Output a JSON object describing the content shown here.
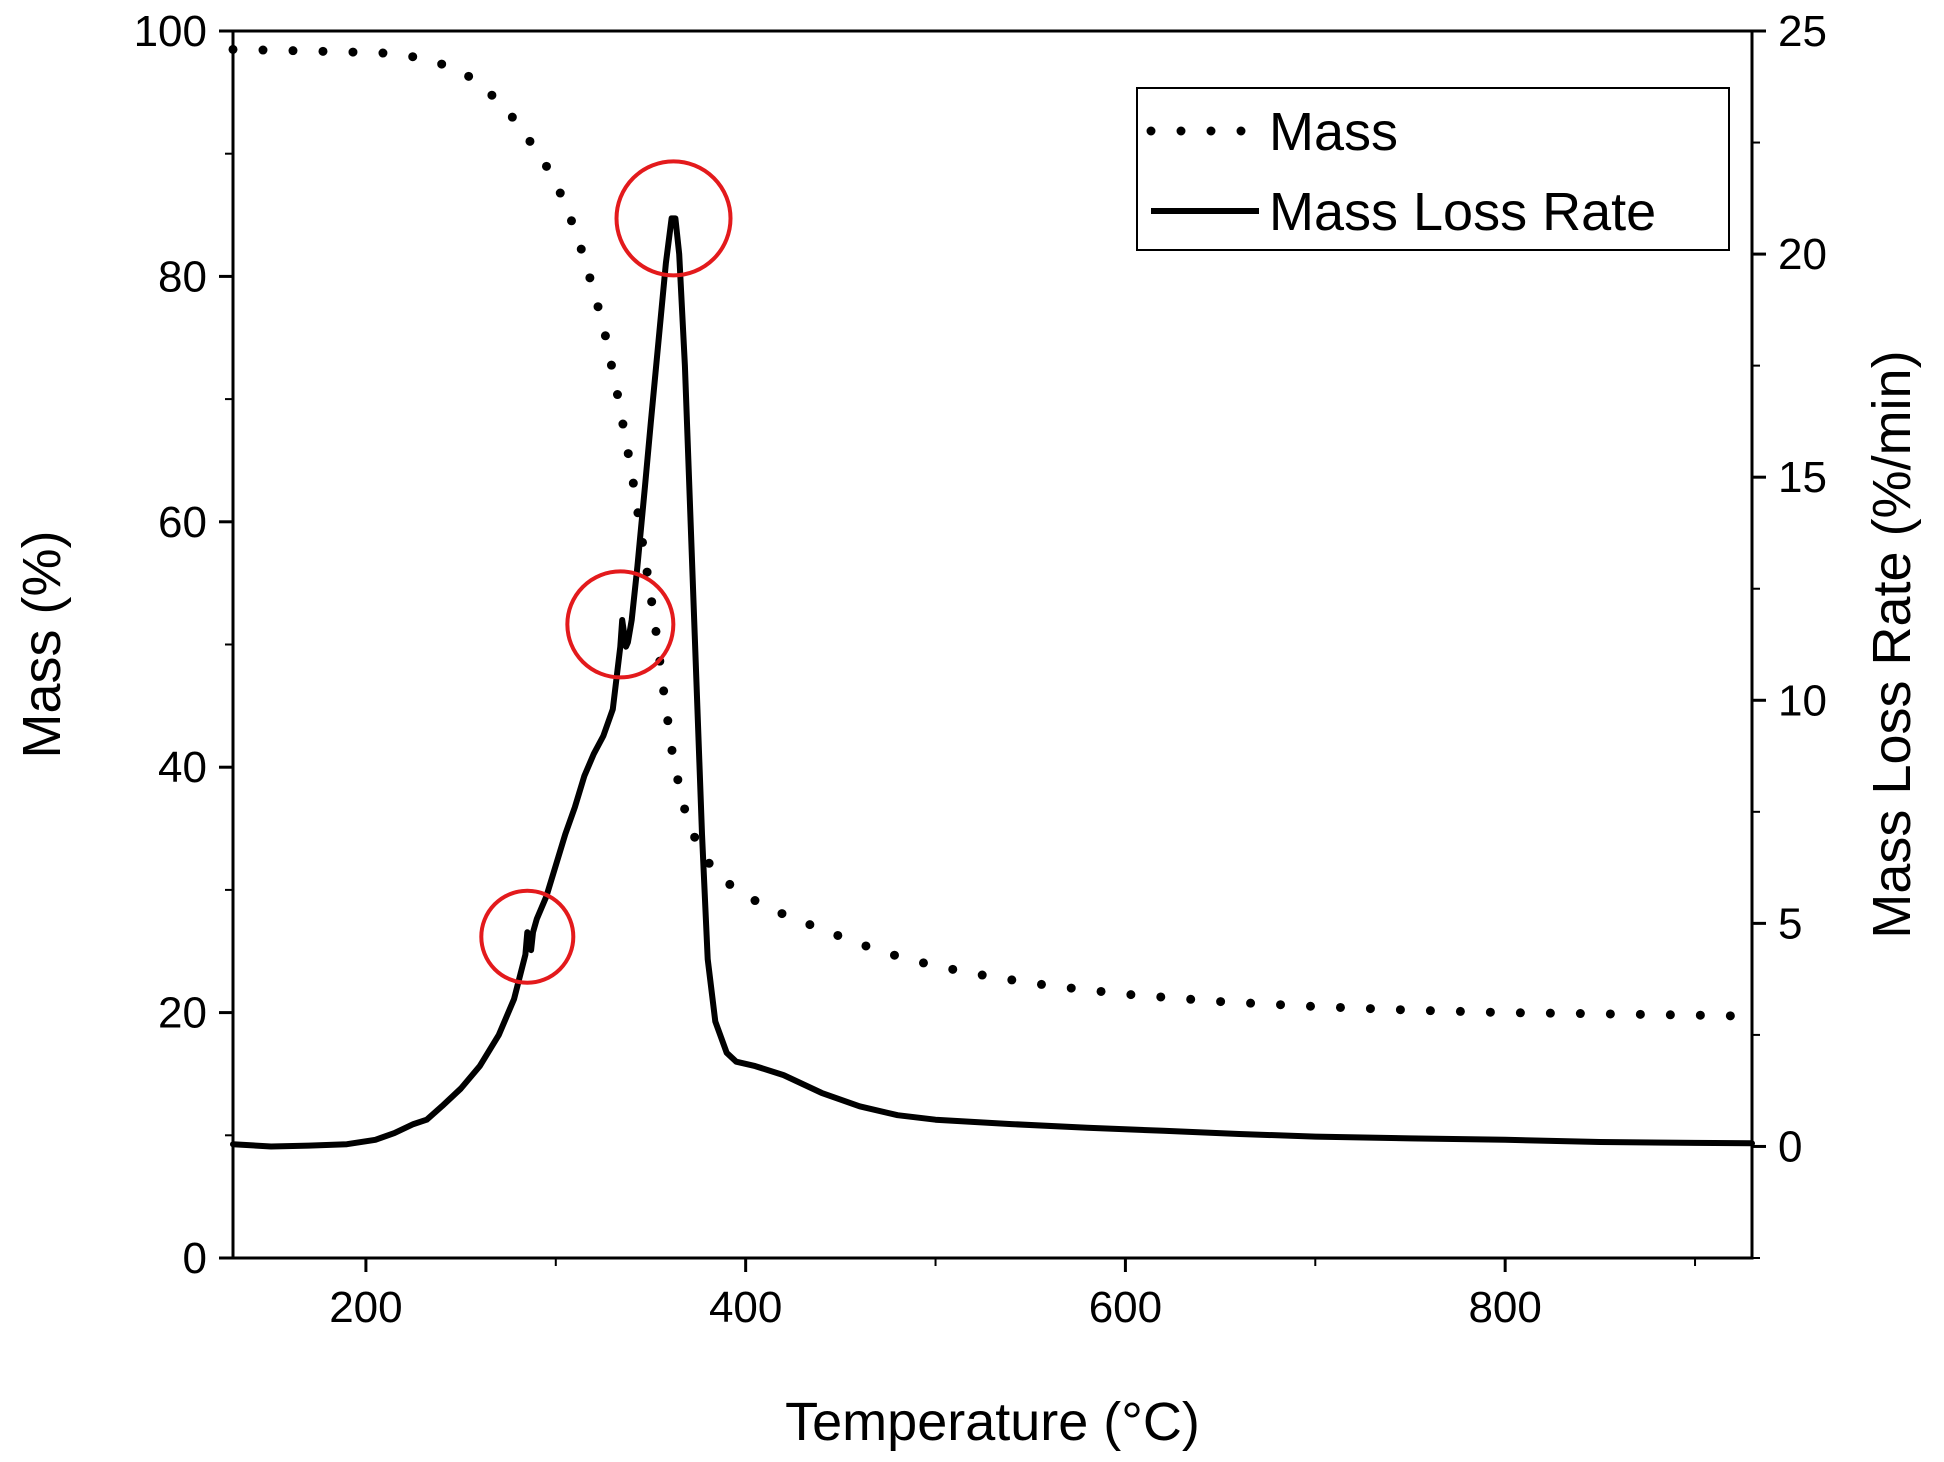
{
  "chart_data": {
    "type": "line",
    "title": "",
    "xlabel": "Temperature (°C)",
    "ylabel": "Mass (%)",
    "y2label": "Mass Loss Rate (%/min)",
    "xlim": [
      130,
      930
    ],
    "ylim": [
      0,
      100
    ],
    "y2lim": [
      -2.5,
      25
    ],
    "x_ticks": [
      200,
      400,
      600,
      800
    ],
    "x_tick_labels": [
      "200",
      "400",
      "600",
      "800"
    ],
    "y_ticks": [
      0,
      20,
      40,
      60,
      80,
      100
    ],
    "y_tick_labels": [
      "0",
      "20",
      "40",
      "60",
      "80",
      "100"
    ],
    "y2_ticks": [
      0,
      5,
      10,
      15,
      20,
      25
    ],
    "y2_tick_labels": [
      "0",
      "5",
      "10",
      "15",
      "20",
      "25"
    ],
    "legend": {
      "position": "top-right",
      "entries": [
        {
          "name": "Mass",
          "style": "dotted"
        },
        {
          "name": "Mass Loss Rate",
          "style": "solid"
        }
      ]
    },
    "series": [
      {
        "name": "Mass",
        "axis": "left",
        "style": "dotted",
        "color": "#000000",
        "points": [
          [
            130,
            98.5
          ],
          [
            160,
            98.4
          ],
          [
            190,
            98.3
          ],
          [
            210,
            98.2
          ],
          [
            230,
            97.8
          ],
          [
            250,
            96.8
          ],
          [
            265,
            95
          ],
          [
            280,
            92.5
          ],
          [
            295,
            89
          ],
          [
            305,
            86
          ],
          [
            315,
            81.5
          ],
          [
            325,
            76
          ],
          [
            333,
            70
          ],
          [
            340,
            64
          ],
          [
            346,
            58
          ],
          [
            352,
            52
          ],
          [
            357,
            46
          ],
          [
            362,
            40.5
          ],
          [
            368,
            36.5
          ],
          [
            375,
            33.5
          ],
          [
            385,
            31.2
          ],
          [
            400,
            29.5
          ],
          [
            420,
            28
          ],
          [
            440,
            26.8
          ],
          [
            460,
            25.6
          ],
          [
            480,
            24.6
          ],
          [
            500,
            23.8
          ],
          [
            530,
            22.9
          ],
          [
            560,
            22.2
          ],
          [
            600,
            21.5
          ],
          [
            650,
            20.9
          ],
          [
            700,
            20.5
          ],
          [
            750,
            20.2
          ],
          [
            800,
            20
          ],
          [
            850,
            19.9
          ],
          [
            900,
            19.8
          ],
          [
            930,
            19.7
          ]
        ]
      },
      {
        "name": "Mass Loss Rate",
        "axis": "right",
        "style": "solid",
        "color": "#000000",
        "points": [
          [
            130,
            0.05
          ],
          [
            150,
            0
          ],
          [
            170,
            0.02
          ],
          [
            190,
            0.05
          ],
          [
            205,
            0.15
          ],
          [
            215,
            0.3
          ],
          [
            225,
            0.5
          ],
          [
            232,
            0.6
          ],
          [
            240,
            0.9
          ],
          [
            250,
            1.3
          ],
          [
            260,
            1.8
          ],
          [
            270,
            2.5
          ],
          [
            278,
            3.3
          ],
          [
            284,
            4.3
          ],
          [
            285,
            4.8
          ],
          [
            286,
            4.5
          ],
          [
            287,
            4.4
          ],
          [
            288,
            4.8
          ],
          [
            290,
            5.1
          ],
          [
            295,
            5.6
          ],
          [
            300,
            6.3
          ],
          [
            305,
            7.0
          ],
          [
            310,
            7.6
          ],
          [
            315,
            8.3
          ],
          [
            320,
            8.8
          ],
          [
            325,
            9.2
          ],
          [
            330,
            9.8
          ],
          [
            334,
            11.2
          ],
          [
            335,
            11.8
          ],
          [
            336,
            11.5
          ],
          [
            337,
            11.2
          ],
          [
            338,
            11.3
          ],
          [
            340,
            11.8
          ],
          [
            343,
            13.0
          ],
          [
            347,
            14.8
          ],
          [
            350,
            16.2
          ],
          [
            354,
            18.0
          ],
          [
            358,
            19.8
          ],
          [
            361,
            20.8
          ],
          [
            363,
            20.8
          ],
          [
            365,
            20.0
          ],
          [
            368,
            17.5
          ],
          [
            371,
            14.0
          ],
          [
            374,
            10.5
          ],
          [
            377,
            7.0
          ],
          [
            380,
            4.2
          ],
          [
            384,
            2.8
          ],
          [
            390,
            2.1
          ],
          [
            395,
            1.9
          ],
          [
            405,
            1.8
          ],
          [
            420,
            1.6
          ],
          [
            430,
            1.4
          ],
          [
            440,
            1.2
          ],
          [
            460,
            0.9
          ],
          [
            480,
            0.7
          ],
          [
            500,
            0.6
          ],
          [
            540,
            0.5
          ],
          [
            580,
            0.42
          ],
          [
            620,
            0.35
          ],
          [
            660,
            0.28
          ],
          [
            700,
            0.22
          ],
          [
            750,
            0.18
          ],
          [
            800,
            0.15
          ],
          [
            850,
            0.1
          ],
          [
            900,
            0.08
          ],
          [
            930,
            0.07
          ]
        ]
      }
    ],
    "annotations": [
      {
        "type": "circle",
        "color": "#e31a1c",
        "x": 362,
        "axis": "right",
        "y": 20.8
      },
      {
        "type": "circle",
        "color": "#e31a1c",
        "x": 334,
        "axis": "right",
        "y": 11.7
      },
      {
        "type": "circle",
        "color": "#e31a1c",
        "x": 285,
        "axis": "right",
        "y": 4.7
      }
    ]
  }
}
